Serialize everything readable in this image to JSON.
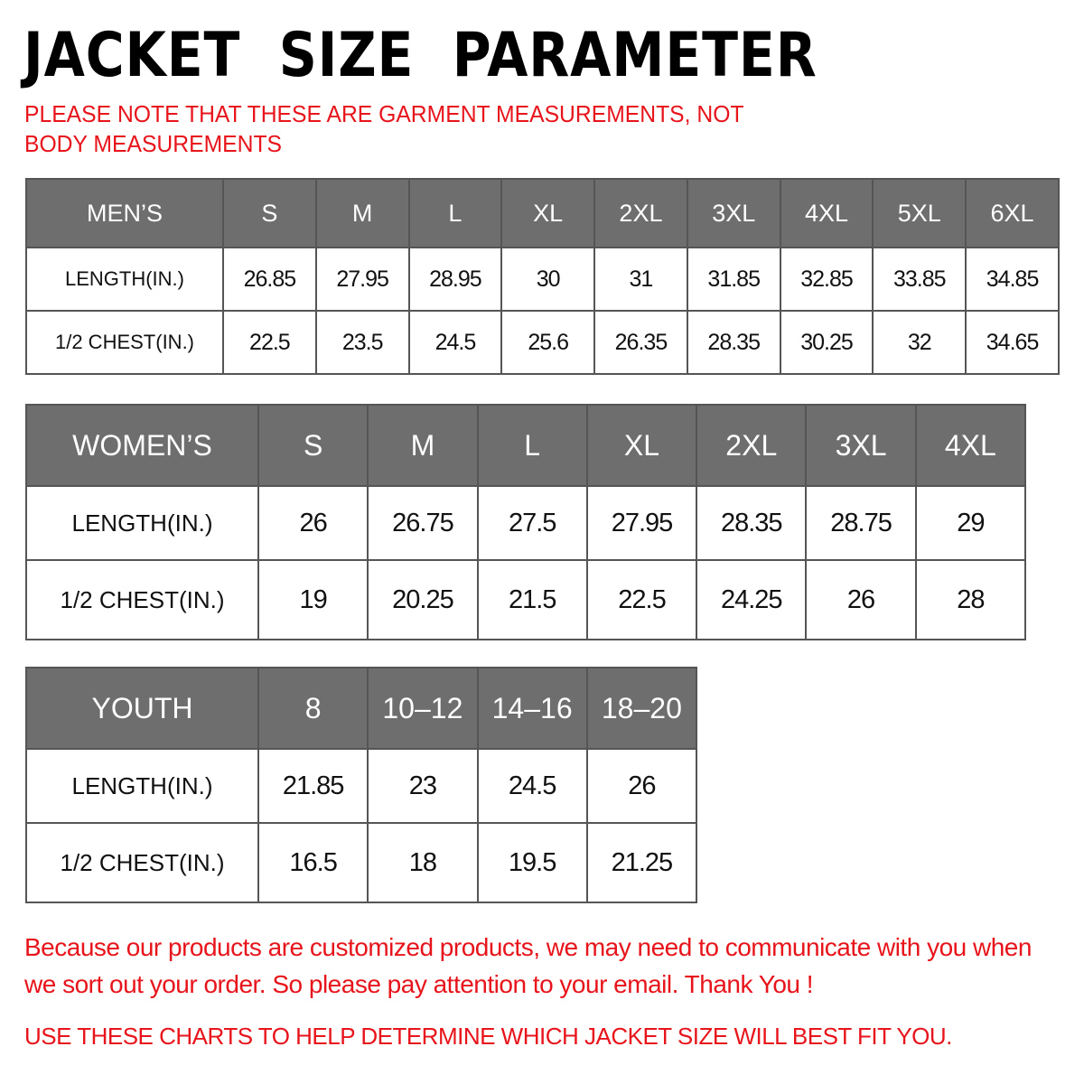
{
  "title": "JACKET  SIZE  PARAMETER",
  "note": "PLEASE NOTE THAT THESE ARE GARMENT MEASUREMENTS, NOT BODY MEASUREMENTS",
  "colors": {
    "header_bg": "#6e6e6e",
    "accent_red": "#e8141b"
  },
  "tables": [
    {
      "id": "men",
      "headers": [
        "MEN’S",
        "S",
        "M",
        "L",
        "XL",
        "2XL",
        "3XL",
        "4XL",
        "5XL",
        "6XL"
      ],
      "rows": [
        [
          "LENGTH(IN.)",
          "26.85",
          "27.95",
          "28.95",
          "30",
          "31",
          "31.85",
          "32.85",
          "33.85",
          "34.85"
        ],
        [
          "1/2 CHEST(IN.)",
          "22.5",
          "23.5",
          "24.5",
          "25.6",
          "26.35",
          "28.35",
          "30.25",
          "32",
          "34.65"
        ]
      ]
    },
    {
      "id": "wom",
      "headers": [
        "WOMEN’S",
        "S",
        "M",
        "L",
        "XL",
        "2XL",
        "3XL",
        "4XL"
      ],
      "rows": [
        [
          "LENGTH(IN.)",
          "26",
          "26.75",
          "27.5",
          "27.95",
          "28.35",
          "28.75",
          "29"
        ],
        [
          "1/2 CHEST(IN.)",
          "19",
          "20.25",
          "21.5",
          "22.5",
          "24.25",
          "26",
          "28"
        ]
      ]
    },
    {
      "id": "you",
      "headers": [
        "YOUTH",
        "8",
        "10–12",
        "14–16",
        "18–20"
      ],
      "rows": [
        [
          "LENGTH(IN.)",
          "21.85",
          "23",
          "24.5",
          "26"
        ],
        [
          "1/2 CHEST(IN.)",
          "16.5",
          "18",
          "19.5",
          "21.25"
        ]
      ]
    }
  ],
  "message": "Because our products are customized products, we may need to communicate with you when we sort out your order. So please pay attention to your email. Thank You !",
  "footer": "USE THESE CHARTS TO HELP DETERMINE WHICH JACKET SIZE WILL BEST FIT YOU."
}
